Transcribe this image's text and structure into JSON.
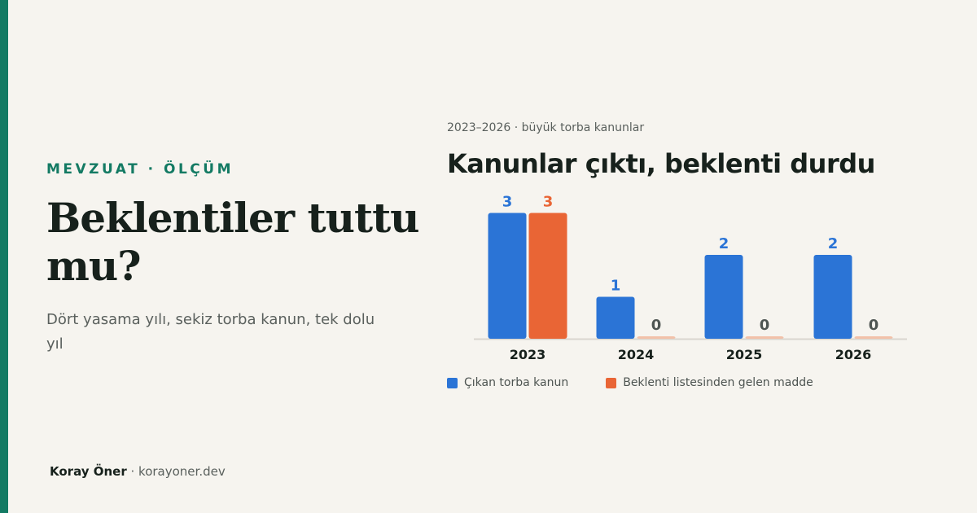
{
  "colors": {
    "accent": "#137a63",
    "series_blue": "#2b74d6",
    "series_orange": "#e96535",
    "series_orange_zero": "#f2c1a9",
    "value_zero": "#4e5552",
    "tick_label": "#17211c",
    "baseline": "#d9d6cf"
  },
  "eyebrow": "MEVZUAT · ÖLÇÜM",
  "headline": "Beklentiler tuttu mu?",
  "subtitle": "Dört yasama yılı, sekiz torba kanun, tek dolu yıl",
  "byline": {
    "author": "Koray Öner",
    "separator": " · ",
    "site": "korayoner.dev"
  },
  "chart_data": {
    "type": "bar",
    "subtitle": "2023–2026 · büyük torba kanunlar",
    "title": "Kanunlar çıktı, beklenti durdu",
    "categories": [
      "2023",
      "2024",
      "2025",
      "2026"
    ],
    "series": [
      {
        "name": "Çıkan torba kanun",
        "values": [
          3,
          1,
          2,
          2
        ],
        "color": "#2b74d6"
      },
      {
        "name": "Beklenti listesinden gelen madde",
        "values": [
          3,
          0,
          0,
          0
        ],
        "color": "#e96535"
      }
    ],
    "ylim": [
      0,
      3
    ],
    "grid": false,
    "legend_position": "bottom-left",
    "data_labels": true
  }
}
